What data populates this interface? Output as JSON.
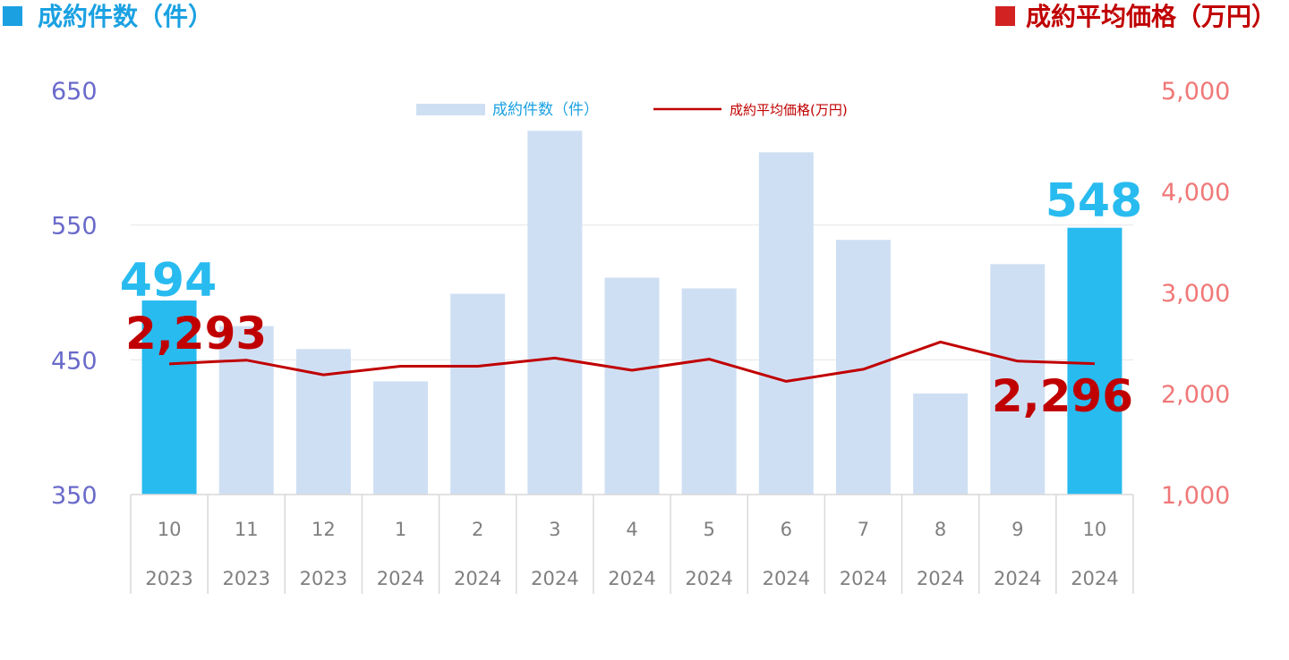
{
  "header": {
    "left_title": "成約件数（件）",
    "right_title": "成約平均価格（万円）"
  },
  "colors": {
    "left_accent": "#1ba1e2",
    "right_accent": "#c00000",
    "bar_normal": "#cfdff3",
    "bar_highlight": "#28bbef",
    "line": "#c00000",
    "left_tick": "#6a6acb",
    "right_tick": "#f07878",
    "x_tick": "#7f7f7f",
    "grid": "#e6e6e6",
    "table_border": "#d9d9d9"
  },
  "chart_data": {
    "type": "bar",
    "categories": [
      "10",
      "11",
      "12",
      "1",
      "2",
      "3",
      "4",
      "5",
      "6",
      "7",
      "8",
      "9",
      "10"
    ],
    "years": [
      "2023",
      "2023",
      "2023",
      "2024",
      "2024",
      "2024",
      "2024",
      "2024",
      "2024",
      "2024",
      "2024",
      "2024",
      "2024"
    ],
    "series": [
      {
        "name": "成約件数（件）",
        "type": "bar",
        "axis": "left",
        "values": [
          494,
          475,
          458,
          434,
          499,
          620,
          511,
          503,
          604,
          539,
          425,
          521,
          548
        ],
        "highlight": [
          true,
          false,
          false,
          false,
          false,
          false,
          false,
          false,
          false,
          false,
          false,
          false,
          true
        ]
      },
      {
        "name": "成約平均価格(万円)",
        "type": "line",
        "axis": "right",
        "values": [
          2293,
          2330,
          2185,
          2270,
          2270,
          2350,
          2230,
          2340,
          2120,
          2240,
          2510,
          2320,
          2296
        ]
      }
    ],
    "left_axis": {
      "ylim": [
        350,
        650
      ],
      "ticks": [
        "650",
        "550",
        "450",
        "350"
      ]
    },
    "right_axis": {
      "ylim": [
        1000,
        5000
      ],
      "ticks": [
        "5,000",
        "4,000",
        "3,000",
        "2,000",
        "1,000"
      ]
    },
    "annotations": {
      "first_bar_label": "494",
      "last_bar_label": "548",
      "first_line_label": "2,293",
      "last_line_label": "2,296"
    },
    "legend": {
      "placement": "top-center",
      "items": [
        "成約件数（件）",
        "成約平均価格(万円)"
      ]
    },
    "grid": true
  }
}
